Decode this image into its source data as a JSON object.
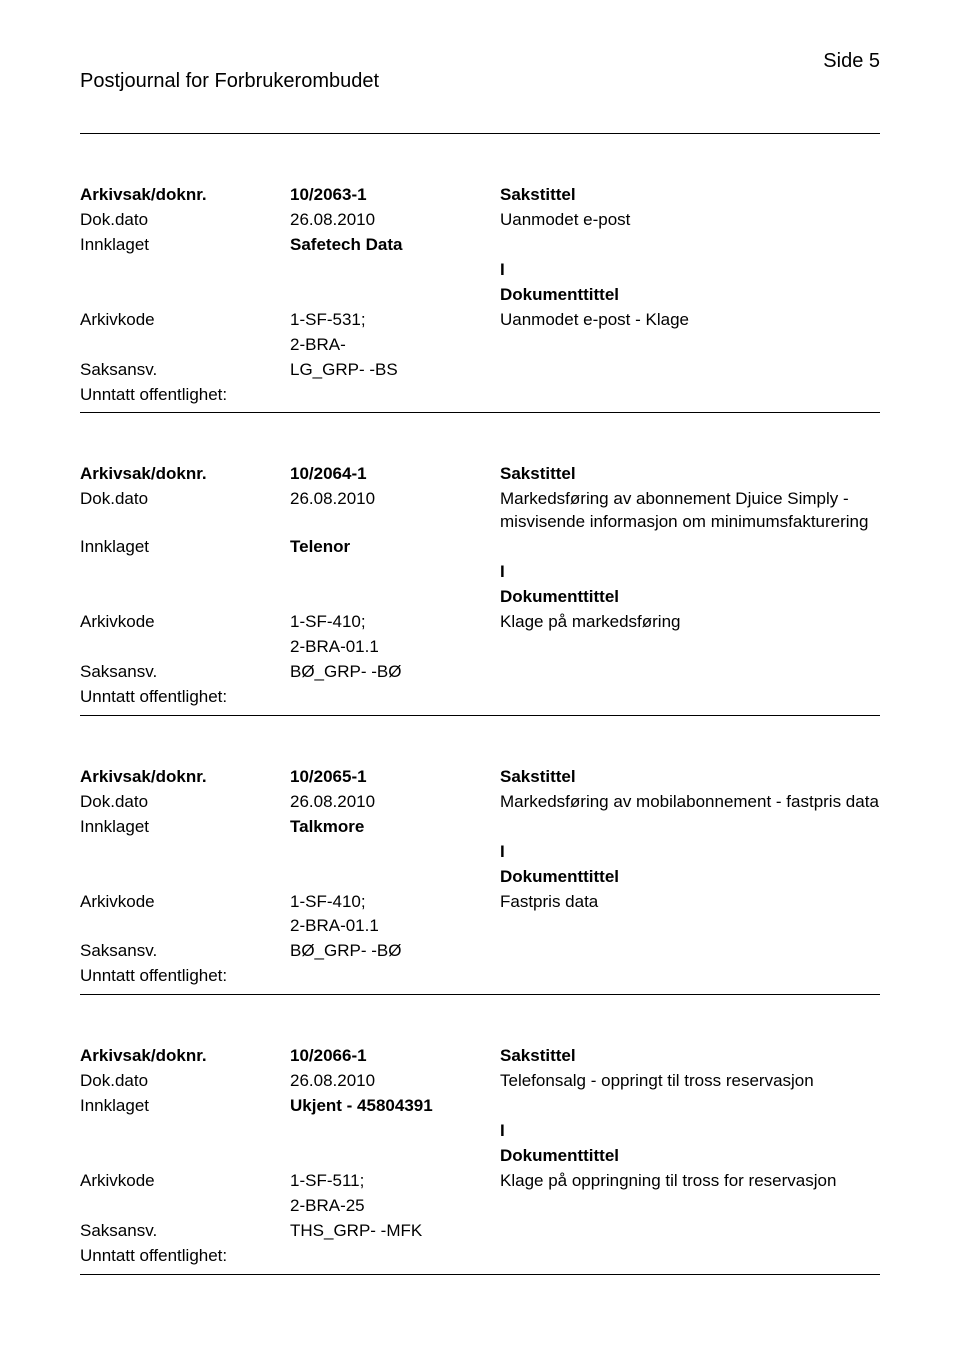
{
  "page": {
    "number": "Side 5",
    "title": "Postjournal for Forbrukerombudet"
  },
  "labels": {
    "arkivsak": "Arkivsak/doknr.",
    "dokdato": "Dok.dato",
    "innklaget": "Innklaget",
    "arkivkode": "Arkivkode",
    "saksansv": "Saksansv.",
    "unntatt": "Unntatt offentlighet:",
    "sakstittel": "Sakstittel",
    "dokumenttittel": "Dokumenttittel"
  },
  "entries": [
    {
      "arkivsak": "10/2063-1",
      "dokdato": "26.08.2010",
      "innklaget": "Safetech Data",
      "arkivkode_l1": "1-SF-531;",
      "arkivkode_l2": "2-BRA-",
      "saksansv": "LG_GRP- -BS",
      "sakstittel": "Uanmodet e-post",
      "ikode": "I",
      "doktittel": "Uanmodet e-post - Klage"
    },
    {
      "arkivsak": "10/2064-1",
      "dokdato": "26.08.2010",
      "innklaget": "Telenor",
      "arkivkode_l1": "1-SF-410;",
      "arkivkode_l2": "2-BRA-01.1",
      "saksansv": "BØ_GRP- -BØ",
      "sakstittel": "Markedsføring av abonnement Djuice Simply  - misvisende informasjon om minimumsfakturering",
      "ikode": "I",
      "doktittel": "Klage på markedsføring"
    },
    {
      "arkivsak": "10/2065-1",
      "dokdato": "26.08.2010",
      "innklaget": "Talkmore",
      "arkivkode_l1": "1-SF-410;",
      "arkivkode_l2": "2-BRA-01.1",
      "saksansv": "BØ_GRP- -BØ",
      "sakstittel": "Markedsføring av mobilabonnement  - fastpris data",
      "ikode": "I",
      "doktittel": "Fastpris data"
    },
    {
      "arkivsak": "10/2066-1",
      "dokdato": "26.08.2010",
      "innklaget": "Ukjent - 45804391",
      "arkivkode_l1": "1-SF-511;",
      "arkivkode_l2": "2-BRA-25",
      "saksansv": "THS_GRP- -MFK",
      "sakstittel": "Telefonsalg - oppringt til tross reservasjon",
      "ikode": "I",
      "doktittel": "Klage på oppringning til tross for reservasjon"
    }
  ]
}
